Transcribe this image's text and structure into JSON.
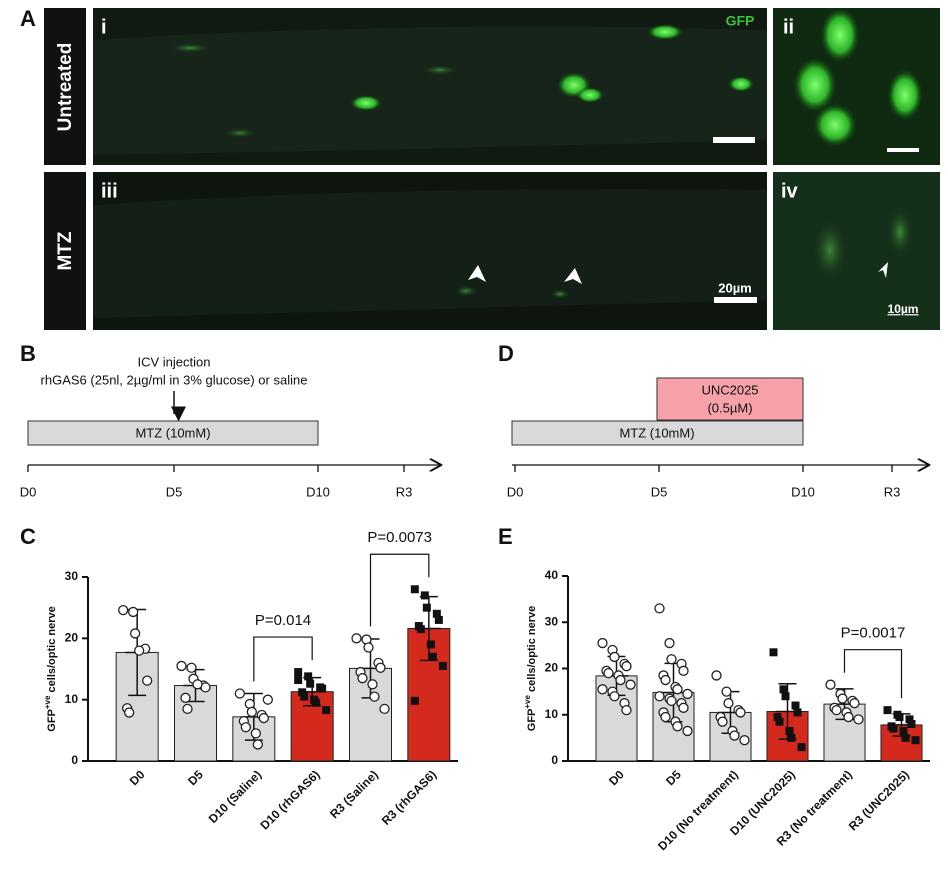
{
  "panel_labels": {
    "a": "A",
    "b": "B",
    "c": "C",
    "d": "D",
    "e": "E"
  },
  "microscopy": {
    "row_labels": [
      "Untreated",
      "MTZ"
    ],
    "image_labels": [
      "i",
      "ii",
      "iii",
      "iv"
    ],
    "channel": "GFP",
    "scale_bars": [
      "20µm",
      "10µm"
    ]
  },
  "timeline_b": {
    "injection": "ICV injection",
    "injection_detail": "rhGAS6 (25nl, 2µg/ml in 3% glucose) or saline",
    "treatment": "MTZ (10mM)",
    "ticks": [
      "D0",
      "D5",
      "D10",
      "R3"
    ]
  },
  "timeline_d": {
    "drug": "UNC2025",
    "drug_dose": "(0.5µM)",
    "treatment": "MTZ (10mM)",
    "ticks": [
      "D0",
      "D5",
      "D10",
      "R3"
    ]
  },
  "chart_data": [
    {
      "type": "bar",
      "y_label": {
        "base": "GFP",
        "sup": "+ve",
        "rest": " cells/optic nerve"
      },
      "categories": [
        "D0",
        "D5",
        "D10 (Saline)",
        "D10 (rhGAS6)",
        "R3 (Saline)",
        "R3 (rhGAS6)"
      ],
      "values": [
        17.7,
        12.3,
        7.2,
        11.3,
        15.1,
        21.6
      ],
      "errors": [
        7.0,
        2.6,
        3.8,
        2.3,
        4.8,
        5.2
      ],
      "colors": [
        "#d9d9d9",
        "#d9d9d9",
        "#d9d9d9",
        "#d42a1e",
        "#d9d9d9",
        "#d42a1e"
      ],
      "markers": [
        "circle",
        "circle",
        "circle",
        "square",
        "circle",
        "square"
      ],
      "points": [
        [
          24.6,
          24.3,
          20.8,
          18.3,
          13.1,
          8.6,
          7.9,
          18.0
        ],
        [
          15.5,
          15.2,
          13.4,
          12.3,
          12.0,
          10.3,
          8.5,
          12.5
        ],
        [
          11.0,
          9.3,
          8.0,
          7.5,
          7.0,
          6.5,
          5.5,
          4.5,
          2.7,
          10.0
        ],
        [
          14.5,
          13.8,
          12.6,
          12.0,
          11.8,
          11.2,
          10.5,
          10.0,
          9.5,
          8.3,
          13.2
        ],
        [
          20.0,
          19.8,
          18.5,
          16.0,
          15.2,
          14.5,
          13.5,
          12.5,
          10.5,
          8.5
        ],
        [
          28.0,
          27.0,
          25.0,
          24.0,
          23.0,
          22.0,
          21.5,
          19.0,
          17.0,
          15.5,
          9.8
        ]
      ],
      "comparisons": [
        {
          "groups": [
            "D10 (Saline)",
            "D10 (rhGAS6)"
          ],
          "label": "P=0.014"
        },
        {
          "groups": [
            "R3 (Saline)",
            "R3 (rhGAS6)"
          ],
          "label": "P=0.0073"
        }
      ],
      "ylim": [
        0,
        30
      ],
      "yticks": [
        0,
        10,
        20,
        30
      ]
    },
    {
      "type": "bar",
      "y_label": {
        "base": "GFP",
        "sup": "+ve",
        "rest": " cells/optic nerve"
      },
      "categories": [
        "D0",
        "D5",
        "D10 (No treatment)",
        "D10 (UNC2025)",
        "R3 (No treatment)",
        "R3 (UNC2025)"
      ],
      "values": [
        18.4,
        14.8,
        10.5,
        10.7,
        12.3,
        7.8
      ],
      "errors": [
        4.2,
        6.3,
        4.5,
        6.0,
        3.3,
        2.4
      ],
      "colors": [
        "#d9d9d9",
        "#d9d9d9",
        "#d9d9d9",
        "#d42a1e",
        "#d9d9d9",
        "#d42a1e"
      ],
      "markers": [
        "circle",
        "circle",
        "circle",
        "square",
        "circle",
        "square"
      ],
      "points": [
        [
          25.5,
          24.0,
          22.5,
          21.0,
          20.5,
          19.5,
          19.0,
          18.5,
          17.5,
          16.5,
          15.5,
          15.0,
          14.0,
          12.5,
          11.0
        ],
        [
          33.0,
          25.5,
          22.0,
          21.0,
          19.5,
          18.5,
          17.5,
          16.0,
          15.5,
          14.5,
          14.0,
          13.5,
          13.0,
          12.5,
          11.5,
          10.5,
          9.5,
          8.5,
          7.5,
          6.5
        ],
        [
          18.5,
          15.0,
          12.5,
          11.0,
          10.5,
          9.5,
          8.5,
          6.5,
          5.5,
          4.5
        ],
        [
          23.5,
          15.5,
          14.0,
          12.0,
          10.5,
          9.5,
          8.5,
          6.5,
          5.0,
          3.0
        ],
        [
          16.5,
          14.5,
          13.5,
          13.0,
          12.5,
          11.5,
          11.0,
          10.5,
          9.5,
          9.0
        ],
        [
          11.0,
          10.0,
          9.5,
          9.0,
          8.0,
          7.5,
          7.0,
          6.5,
          5.0,
          4.5
        ]
      ],
      "comparisons": [
        {
          "groups": [
            "R3 (No treatment)",
            "R3 (UNC2025)"
          ],
          "label": "P=0.0017"
        }
      ],
      "ylim": [
        0,
        40
      ],
      "yticks": [
        0,
        10,
        20,
        30,
        40
      ]
    }
  ]
}
